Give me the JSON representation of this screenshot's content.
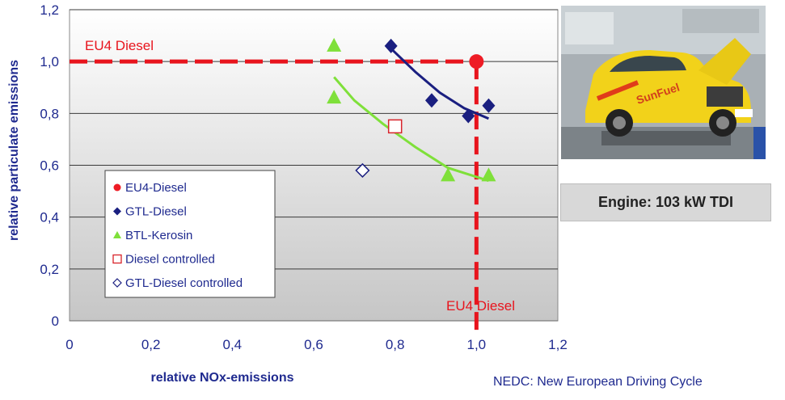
{
  "chart_data": {
    "type": "scatter",
    "xlabel": "relative NOx-emissions",
    "ylabel": "relative particulate emissions",
    "xlim": [
      0,
      1.2
    ],
    "ylim": [
      0,
      1.2
    ],
    "x_ticks": [
      "0",
      "0,2",
      "0,4",
      "0,6",
      "0,8",
      "1,0",
      "1,2"
    ],
    "y_ticks": [
      "0",
      "0,2",
      "0,4",
      "0,6",
      "0,8",
      "1,0",
      "1,2"
    ],
    "grid": "horizontal",
    "legend_position": "lower-left",
    "reference_lines": [
      {
        "orientation": "horizontal",
        "value": 1.0,
        "label": "EU4 Diesel"
      },
      {
        "orientation": "vertical",
        "value": 1.0,
        "label": "EU4 Diesel"
      }
    ],
    "series": [
      {
        "name": "EU4-Diesel",
        "marker": "circle",
        "color": "#ee1c25",
        "points": [
          [
            1.0,
            1.0
          ]
        ]
      },
      {
        "name": "GTL-Diesel",
        "marker": "diamond",
        "color": "#1a1f80",
        "points": [
          [
            0.79,
            1.06
          ],
          [
            0.89,
            0.85
          ],
          [
            0.98,
            0.79
          ],
          [
            1.03,
            0.83
          ]
        ]
      },
      {
        "name": "BTL-Kerosin",
        "marker": "triangle",
        "color": "#7fe03a",
        "points": [
          [
            0.65,
            1.06
          ],
          [
            0.65,
            0.86
          ],
          [
            0.93,
            0.56
          ],
          [
            1.03,
            0.56
          ]
        ]
      },
      {
        "name": "Diesel controlled",
        "marker": "open-square",
        "color": "#d8232a",
        "points": [
          [
            0.8,
            0.75
          ]
        ]
      },
      {
        "name": "GTL-Diesel controlled",
        "marker": "open-diamond",
        "color": "#1a1f80",
        "points": [
          [
            0.72,
            0.58
          ]
        ]
      }
    ],
    "trendlines": [
      {
        "series": "GTL-Diesel",
        "color": "#1a1f80",
        "points": [
          [
            0.79,
            1.05
          ],
          [
            0.85,
            0.96
          ],
          [
            0.91,
            0.88
          ],
          [
            0.97,
            0.82
          ],
          [
            1.03,
            0.78
          ]
        ]
      },
      {
        "series": "BTL-Kerosin",
        "color": "#7fe03a",
        "points": [
          [
            0.65,
            0.94
          ],
          [
            0.7,
            0.85
          ],
          [
            0.77,
            0.76
          ],
          [
            0.85,
            0.67
          ],
          [
            0.93,
            0.59
          ],
          [
            1.03,
            0.54
          ]
        ]
      }
    ]
  },
  "photo_icon": "car-on-dynamometer-photo",
  "photo_caption": "SunFuel",
  "engine_label": "Engine: 103 kW TDI",
  "footnote": "NEDC: New European Driving Cycle",
  "colors": {
    "plot_top": "#ffffff",
    "plot_bottom": "#c8c8c8",
    "axis_text": "#1f2a8f",
    "reference": "#e8141d"
  }
}
